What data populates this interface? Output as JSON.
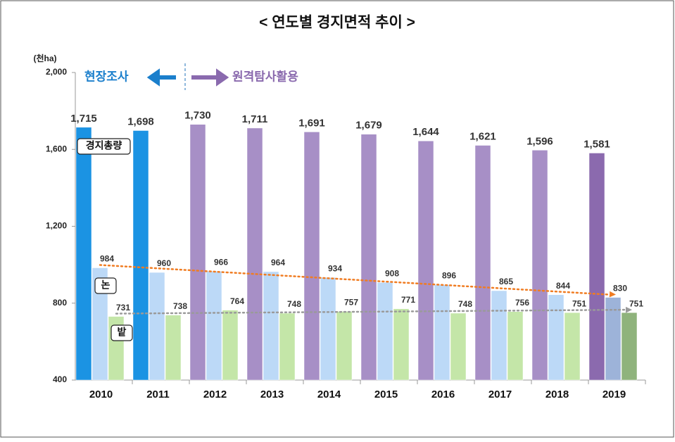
{
  "chart_data": {
    "type": "bar",
    "title": "< 연도별 경지면적 추이 >",
    "y_unit": "(천ha)",
    "annotations": {
      "left": "현장조사",
      "right": "원격탐사활용"
    },
    "categories": [
      "2010",
      "2011",
      "2012",
      "2013",
      "2014",
      "2015",
      "2016",
      "2017",
      "2018",
      "2019"
    ],
    "series": [
      {
        "name": "경지총량",
        "colors": [
          "#1b93e3",
          "#1b93e3",
          "#a78fc6",
          "#a78fc6",
          "#a78fc6",
          "#a78fc6",
          "#a78fc6",
          "#a78fc6",
          "#a78fc6",
          "#8b6aae"
        ],
        "values": [
          1715,
          1698,
          1730,
          1711,
          1691,
          1679,
          1644,
          1621,
          1596,
          1581
        ],
        "value_labels": [
          "1,715",
          "1,698",
          "1,730",
          "1,711",
          "1,691",
          "1,679",
          "1,644",
          "1,621",
          "1,596",
          "1,581"
        ]
      },
      {
        "name": "논",
        "colors": [
          "#bcd9f7",
          "#bcd9f7",
          "#bcd9f7",
          "#bcd9f7",
          "#bcd9f7",
          "#bcd9f7",
          "#bcd9f7",
          "#bcd9f7",
          "#bcd9f7",
          "#9db3d9"
        ],
        "trend_color": "#f07c22",
        "values": [
          984,
          960,
          966,
          964,
          934,
          908,
          896,
          865,
          844,
          830
        ]
      },
      {
        "name": "밭",
        "colors": [
          "#c4e6a8",
          "#c4e6a8",
          "#c4e6a8",
          "#c4e6a8",
          "#c4e6a8",
          "#c4e6a8",
          "#c4e6a8",
          "#c4e6a8",
          "#c4e6a8",
          "#8fb37c"
        ],
        "trend_color": "#9a9a9a",
        "values": [
          731,
          738,
          764,
          748,
          757,
          771,
          748,
          756,
          751,
          751
        ]
      }
    ],
    "ylim": [
      400,
      2000
    ],
    "yticks": [
      400,
      800,
      {
        "value": 1200,
        "label": "1,200"
      },
      {
        "value": 1600,
        "label": "1,600"
      },
      {
        "value": 2000,
        "label": "2,000"
      }
    ]
  }
}
